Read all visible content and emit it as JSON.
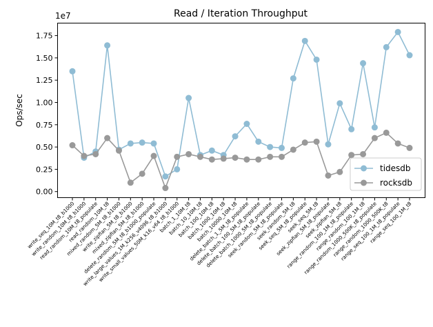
{
  "chart_data": {
    "type": "line",
    "title": "Read / Iteration Throughput",
    "xlabel": "",
    "ylabel": "Ops/sec",
    "y_offset_label": "1e7",
    "ylim": [
      -680000,
      18900000
    ],
    "yticks": [
      0,
      2500000,
      5000000,
      7500000,
      10000000,
      12500000,
      15000000,
      17500000
    ],
    "ytick_labels": [
      "0.00",
      "0.25",
      "0.50",
      "0.75",
      "1.00",
      "1.25",
      "1.50",
      "1.75"
    ],
    "grid": false,
    "legend_position": "lower-right",
    "categories": [
      "write_seq_10M_t8_b1000",
      "write_random_10M_t8_b1000",
      "read_random_10M_t8_populate",
      "read_random_10M_t8",
      "mixed_random_5M_t8_b1000",
      "write_zipfian_5M_t8_b1000",
      "mixed_zipfian_5M_t8_b1000",
      "delete_random_5M_t8_b1000_populate",
      "write_large_values_1M_k256_v4096_t8_b1000",
      "write_small_values_50M_k16_v64_t8_b1000",
      "batch_1_10M_t8",
      "batch_10_10M_t8",
      "batch_100_10M_t8",
      "batch_1000_10M_t8",
      "batch_10000_10M_t8",
      "delete_batch_1_5M_t8_populate",
      "delete_batch_100_5M_t8_populate",
      "delete_batch_1000_5M_t8_populate",
      "seek_random_5M_t8_populate",
      "seek_random_5M_t8",
      "seek_seq_5M_t8_populate",
      "seek_seq_5M_t8",
      "seek_zipfian_5M_t8_populate",
      "seek_zipfian_5M_t8",
      "range_random_100_1M_t8_populate",
      "range_random_100_1M_t8",
      "range_random_1000_500K_t8_populate",
      "range_random_1000_500K_t8",
      "range_seq_100_1M_t8_populate",
      "range_seq_100_1M_t8"
    ],
    "series": [
      {
        "name": "tidesdb",
        "color": "#8fbcd4",
        "values": [
          13500000,
          3800000,
          4500000,
          16400000,
          4700000,
          5400000,
          5500000,
          5400000,
          1700000,
          2500000,
          10500000,
          4100000,
          4600000,
          4100000,
          6200000,
          7600000,
          5600000,
          5000000,
          4900000,
          12700000,
          16900000,
          14800000,
          5300000,
          9900000,
          7000000,
          14400000,
          7200000,
          16200000,
          17900000,
          15300000
        ]
      },
      {
        "name": "rocksdb",
        "color": "#999999",
        "values": [
          5200000,
          4000000,
          4200000,
          6000000,
          4600000,
          1000000,
          2000000,
          4000000,
          400000,
          3900000,
          4200000,
          3900000,
          3600000,
          3700000,
          3800000,
          3600000,
          3600000,
          3900000,
          3900000,
          4700000,
          5500000,
          5600000,
          1800000,
          2200000,
          4100000,
          4200000,
          6000000,
          6600000,
          5400000,
          4900000
        ]
      }
    ]
  }
}
